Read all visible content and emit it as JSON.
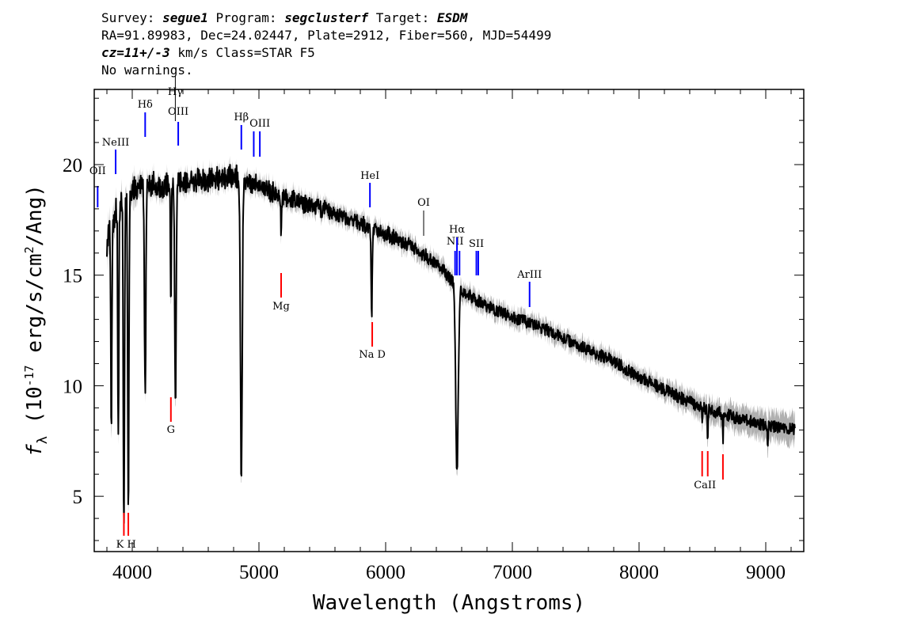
{
  "header": {
    "line1": {
      "survey_label": "Survey: ",
      "survey": "segue1",
      "program_label": " Program: ",
      "program": "segclusterf",
      "target_label": " Target: ",
      "target": "ESDM"
    },
    "line2": "RA=91.89983, Dec=24.02447, Plate=2912, Fiber=560, MJD=54499",
    "line3": {
      "cz": "cz=11+/-3",
      "rest": " km/s Class=STAR F5"
    },
    "line4": "No warnings."
  },
  "chart_data": {
    "type": "line",
    "xlabel": "Wavelength (Angstroms)",
    "ylabel": "f_λ (10^-17 erg/s/cm^2/Ang)",
    "xlim": [
      3700,
      9300
    ],
    "ylim": [
      2.5,
      23.4
    ],
    "xticks": [
      4000,
      5000,
      6000,
      7000,
      8000,
      9000
    ],
    "yticks": [
      5,
      10,
      15,
      20
    ],
    "x_minor_step": 200,
    "y_minor_step": 1,
    "series": [
      {
        "color": "#000000",
        "noise_color": "#b0b0b0",
        "continuum": [
          [
            3800,
            17.0
          ],
          [
            3900,
            18.8
          ],
          [
            4000,
            19.4
          ],
          [
            4100,
            19.6
          ],
          [
            4200,
            19.4
          ],
          [
            4400,
            19.6
          ],
          [
            4600,
            19.7
          ],
          [
            4800,
            19.8
          ],
          [
            4900,
            19.6
          ],
          [
            5000,
            19.3
          ],
          [
            5200,
            18.8
          ],
          [
            5400,
            18.4
          ],
          [
            5600,
            18.0
          ],
          [
            5800,
            17.5
          ],
          [
            6000,
            17.0
          ],
          [
            6200,
            16.4
          ],
          [
            6400,
            15.6
          ],
          [
            6600,
            14.3
          ],
          [
            6800,
            13.6
          ],
          [
            7000,
            13.1
          ],
          [
            7200,
            12.7
          ],
          [
            7500,
            11.9
          ],
          [
            7800,
            11.1
          ],
          [
            8000,
            10.4
          ],
          [
            8200,
            9.8
          ],
          [
            8500,
            9.0
          ],
          [
            8800,
            8.5
          ],
          [
            9000,
            8.2
          ],
          [
            9230,
            8.0
          ]
        ],
        "absorption": [
          [
            3835,
            16.9,
            6
          ],
          [
            3890,
            18.8,
            6
          ],
          [
            3934,
            19.4,
            7
          ],
          [
            3969,
            19.4,
            7
          ],
          [
            4102,
            19.6,
            8
          ],
          [
            4305,
            19.5,
            5
          ],
          [
            4341,
            19.5,
            8
          ],
          [
            4861,
            19.8,
            10
          ],
          [
            5175,
            18.8,
            4
          ],
          [
            5890,
            17.4,
            6
          ],
          [
            6563,
            14.5,
            14
          ],
          [
            8498,
            9.0,
            3
          ],
          [
            8542,
            9.0,
            4
          ],
          [
            8662,
            8.8,
            3
          ],
          [
            9015,
            8.2,
            3
          ]
        ],
        "absorption_depths": [
          9.0,
          10.5,
          14.8,
          14.2,
          9.5,
          5.5,
          10.0,
          13.5,
          2.0,
          4.0,
          8.5,
          0.7,
          1.5,
          1.2,
          1.0
        ]
      }
    ],
    "emission_lines": [
      {
        "label": "OII",
        "wavelength": 3727
      },
      {
        "label": "NeIII",
        "wavelength": 3869
      },
      {
        "label": "Hδ",
        "wavelength": 4102
      },
      {
        "label": "Hγ",
        "wavelength": 4340
      },
      {
        "label": "OIII",
        "wavelength": 4363
      },
      {
        "label": "Hβ",
        "wavelength": 4861
      },
      {
        "label": "OIII",
        "wavelength": 4959
      },
      {
        "label": "OIII",
        "wavelength": 5007
      },
      {
        "label": "HeI",
        "wavelength": 5876
      },
      {
        "label": "OI",
        "wavelength": 6300
      },
      {
        "label": "NII",
        "wavelength": 6548
      },
      {
        "label": "Hα",
        "wavelength": 6563
      },
      {
        "label": "NII",
        "wavelength": 6583
      },
      {
        "label": "SII",
        "wavelength": 6716
      },
      {
        "label": "SII",
        "wavelength": 6731
      },
      {
        "label": "ArIII",
        "wavelength": 7136
      }
    ],
    "absorption_lines": [
      {
        "label": "K",
        "wavelength": 3934
      },
      {
        "label": "H",
        "wavelength": 3969
      },
      {
        "label": "G",
        "wavelength": 4305
      },
      {
        "label": "Mg",
        "wavelength": 5175
      },
      {
        "label": "Na D",
        "wavelength": 5894
      },
      {
        "label": "CaII",
        "wavelength": 8498
      },
      {
        "label": "CaII",
        "wavelength": 8542
      },
      {
        "label": "CaII",
        "wavelength": 8662
      }
    ],
    "emission_color": "#0000ff",
    "absorption_color": "#ff0000"
  }
}
